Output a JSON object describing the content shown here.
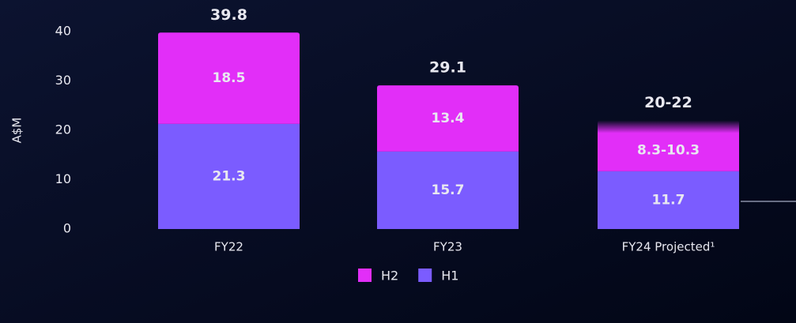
{
  "chart_data": {
    "type": "stacked_bar",
    "axis_label": "A$M",
    "categories": [
      "FY22",
      "FY23",
      "FY24 Projected¹"
    ],
    "series": [
      {
        "name": "H1",
        "color": "#7b5cff",
        "values": [
          21.3,
          15.7,
          11.7
        ]
      },
      {
        "name": "H2",
        "color": "#e22ef8",
        "values": [
          18.5,
          13.4,
          10.3
        ],
        "value_labels": [
          "18.5",
          "13.4",
          "8.3-10.3"
        ]
      }
    ],
    "totals": {
      "values": [
        39.8,
        29.1,
        22
      ],
      "value_labels": [
        "39.8",
        "29.1",
        "20-22"
      ]
    },
    "ylim": [
      0,
      40
    ],
    "yticks": [
      0,
      10,
      20,
      30,
      40
    ],
    "grid": false
  }
}
